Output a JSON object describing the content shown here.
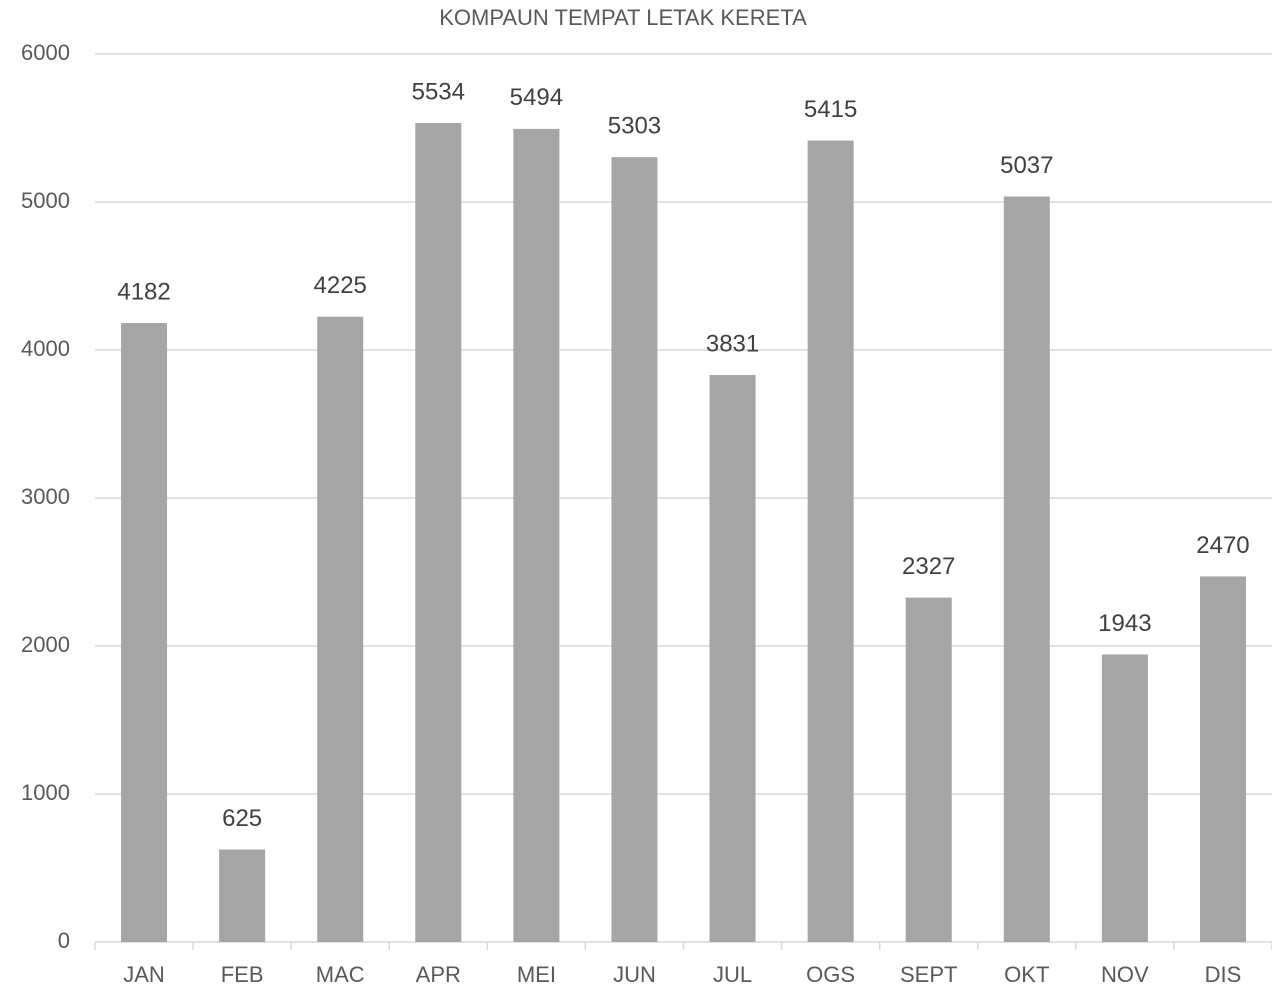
{
  "chart_data": {
    "type": "bar",
    "title": "KOMPAUN TEMPAT LETAK KERETA",
    "categories": [
      "JAN",
      "FEB",
      "MAC",
      "APR",
      "MEI",
      "JUN",
      "JUL",
      "OGS",
      "SEPT",
      "OKT",
      "NOV",
      "DIS"
    ],
    "values": [
      4182,
      625,
      4225,
      5534,
      5494,
      5303,
      3831,
      5415,
      2327,
      5037,
      1943,
      2470
    ],
    "color": "#a5a5a5",
    "ylim": [
      0,
      6000
    ],
    "yticks": [
      0,
      1000,
      2000,
      3000,
      4000,
      5000,
      6000
    ],
    "grid": true
  }
}
